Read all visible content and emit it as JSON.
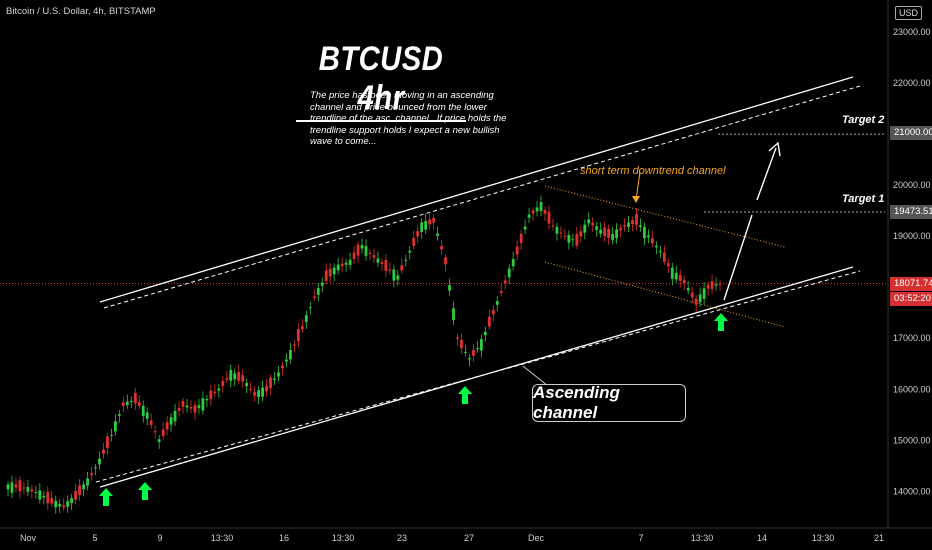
{
  "header": {
    "symbol": "Bitcoin / U.S. Dollar, 4h, BITSTAMP",
    "currency": "USD"
  },
  "annotations": {
    "title": "BTCUSD 4hr",
    "description": "The price has been moving in an ascending channel and price bounced from the lower trendline of the asc. channel , If price holds the trendline support holds I expect a new bullish wave to come...",
    "short_term_label": "short term downtrend channel",
    "target1": "Target 1",
    "target2": "Target 2",
    "ascending_label": "Ascending channel"
  },
  "price_tags": {
    "target1_price": "19473.51",
    "target2_price": "21000.00",
    "current_price": "18071.74",
    "countdown": "03:52:20"
  },
  "colors": {
    "background": "#000000",
    "up": "#2ecc40",
    "down": "#e0312f",
    "accent_orange": "#f5a623",
    "signal_green": "#00ff44",
    "price_line": "#d63031"
  },
  "chart_data": {
    "type": "candlestick",
    "y_axis": {
      "ticks": [
        14000,
        15000,
        16000,
        17000,
        18000,
        19000,
        20000,
        21000,
        22000,
        23000
      ],
      "labels": [
        "14000.00",
        "15000.00",
        "16000.00",
        "17000.00",
        "18000.00",
        "19000.00",
        "20000.00",
        "21000.00",
        "22000.00",
        "23000.00"
      ],
      "range": [
        13600,
        23300
      ]
    },
    "x_axis": {
      "ticks": [
        "Nov",
        "5",
        "9",
        "13:30",
        "16",
        "13:30",
        "23",
        "27",
        "Dec",
        "7",
        "13:30",
        "14",
        "13:30",
        "21"
      ]
    },
    "ohlc_series": [
      14100,
      14050,
      13950,
      13800,
      13700,
      13900,
      14200,
      14600,
      15100,
      15700,
      15800,
      15500,
      15000,
      15400,
      15700,
      15600,
      15800,
      16000,
      16300,
      16200,
      15900,
      16000,
      16300,
      16700,
      17200,
      17800,
      18200,
      18400,
      18500,
      18800,
      18600,
      18400,
      18200,
      18700,
      19200,
      19300,
      18500,
      17000,
      16600,
      16900,
      17500,
      18100,
      18700,
      19400,
      19600,
      19200,
      19000,
      18900,
      19300,
      19100,
      19000,
      19200,
      19300,
      19000,
      18700,
      18300,
      18100,
      17700,
      18000,
      18070
    ],
    "key_levels": {
      "current": 18071.74,
      "target_1": 19473.51,
      "target_2": 21000.0
    }
  }
}
